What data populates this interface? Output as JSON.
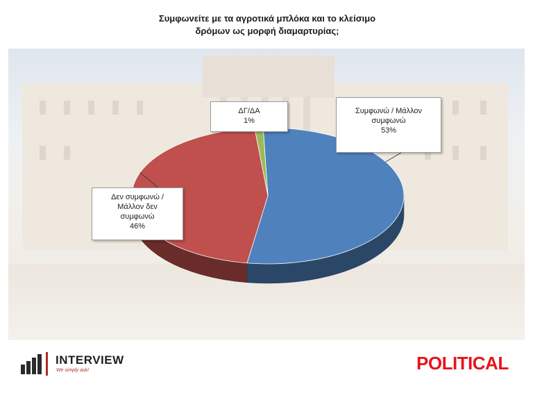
{
  "title": {
    "line1": "Συμφωνείτε με τα αγροτικά μπλόκα και το κλείσιμο",
    "line2": "δρόμων ως μορφή διαμαρτυρίας;"
  },
  "chart_data": {
    "type": "pie",
    "title": "Συμφωνείτε με τα αγροτικά μπλόκα και το κλείσιμο δρόμων ως μορφή διαμαρτυρίας;",
    "slices": [
      {
        "label_lines": [
          "Συμφωνώ / Μάλλον",
          "συμφωνώ"
        ],
        "value": 53,
        "value_label": "53%",
        "color": "#4f81bd"
      },
      {
        "label_lines": [
          "Δεν συμφωνώ /",
          "Μάλλον δεν",
          "συμφωνώ"
        ],
        "value": 46,
        "value_label": "46%",
        "color": "#c0504d"
      },
      {
        "label_lines": [
          "ΔΓ/ΔΑ"
        ],
        "value": 1,
        "value_label": "1%",
        "color": "#9bbb59"
      }
    ]
  },
  "branding": {
    "left_logo_text": "INTERVIEW",
    "left_logo_tagline": "We simply ask!",
    "right_logo_text": "POLITICAL"
  },
  "colors": {
    "agree": "#4f81bd",
    "disagree": "#c0504d",
    "dk_na": "#9bbb59",
    "political_red": "#e8141b"
  }
}
